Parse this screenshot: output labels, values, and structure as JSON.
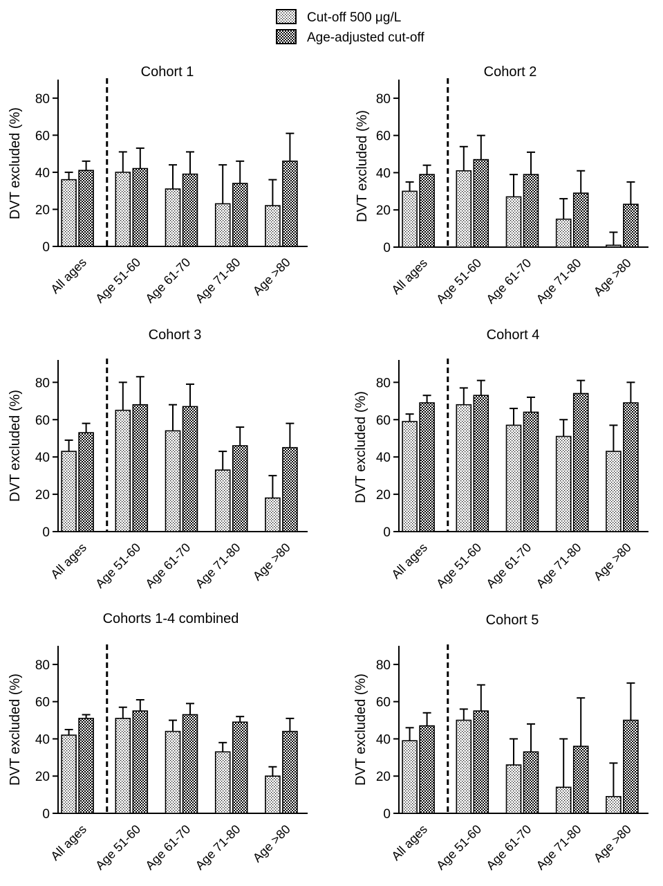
{
  "legend": {
    "items": [
      {
        "label": "Cut-off 500 μg/L",
        "pattern": "dots"
      },
      {
        "label": "Age-adjusted cut-off",
        "pattern": "checker"
      }
    ]
  },
  "colors": {
    "ink": "#000000",
    "background": "#ffffff"
  },
  "chart_data": [
    {
      "type": "bar",
      "title": "Cohort 1",
      "ylabel": "DVT excluded (%)",
      "ylim": [
        0,
        90
      ],
      "yticks": [
        0,
        20,
        40,
        60,
        80
      ],
      "categories": [
        "All ages",
        "Age 51-60",
        "Age 61-70",
        "Age 71-80",
        "Age >80"
      ],
      "series": [
        {
          "name": "Cut-off 500 μg/L",
          "values": [
            36,
            40,
            31,
            23,
            22
          ],
          "errors": [
            4,
            11,
            13,
            21,
            14
          ]
        },
        {
          "name": "Age-adjusted cut-off",
          "values": [
            41,
            42,
            39,
            34,
            46
          ],
          "errors": [
            5,
            11,
            12,
            12,
            15
          ]
        }
      ]
    },
    {
      "type": "bar",
      "title": "Cohort 2",
      "ylabel": "DVT excluded (%)",
      "ylim": [
        0,
        90
      ],
      "yticks": [
        0,
        20,
        40,
        60,
        80
      ],
      "categories": [
        "All ages",
        "Age 51-60",
        "Age 61-70",
        "Age 71-80",
        "Age >80"
      ],
      "series": [
        {
          "name": "Cut-off 500 μg/L",
          "values": [
            30,
            41,
            27,
            15,
            1
          ],
          "errors": [
            5,
            13,
            12,
            11,
            7
          ]
        },
        {
          "name": "Age-adjusted cut-off",
          "values": [
            39,
            47,
            39,
            29,
            23
          ],
          "errors": [
            5,
            13,
            12,
            12,
            12
          ]
        }
      ]
    },
    {
      "type": "bar",
      "title": "Cohort 3",
      "ylabel": "DVT excluded (%)",
      "ylim": [
        0,
        92
      ],
      "yticks": [
        0,
        20,
        40,
        60,
        80
      ],
      "categories": [
        "All ages",
        "Age 51-60",
        "Age 61-70",
        "Age 71-80",
        "Age >80"
      ],
      "series": [
        {
          "name": "Cut-off 500 μg/L",
          "values": [
            43,
            65,
            54,
            33,
            18
          ],
          "errors": [
            6,
            15,
            14,
            10,
            12
          ]
        },
        {
          "name": "Age-adjusted cut-off",
          "values": [
            53,
            68,
            67,
            46,
            45
          ],
          "errors": [
            5,
            15,
            12,
            10,
            13
          ]
        }
      ]
    },
    {
      "type": "bar",
      "title": "Cohort 4",
      "ylabel": "DVT excluded (%)",
      "ylim": [
        0,
        92
      ],
      "yticks": [
        0,
        20,
        40,
        60,
        80
      ],
      "categories": [
        "All ages",
        "Age 51-60",
        "Age 61-70",
        "Age 71-80",
        "Age >80"
      ],
      "series": [
        {
          "name": "Cut-off 500 μg/L",
          "values": [
            59,
            68,
            57,
            51,
            43
          ],
          "errors": [
            4,
            9,
            9,
            9,
            14
          ]
        },
        {
          "name": "Age-adjusted cut-off",
          "values": [
            69,
            73,
            64,
            74,
            69
          ],
          "errors": [
            4,
            8,
            8,
            7,
            11
          ]
        }
      ]
    },
    {
      "type": "bar",
      "title": "Cohorts 1-4 combined",
      "ylabel": "DVT excluded (%)",
      "ylim": [
        0,
        90
      ],
      "yticks": [
        0,
        20,
        40,
        60,
        80
      ],
      "categories": [
        "All ages",
        "Age 51-60",
        "Age 61-70",
        "Age 71-80",
        "Age >80"
      ],
      "series": [
        {
          "name": "Cut-off 500 μg/L",
          "values": [
            42,
            51,
            44,
            33,
            20
          ],
          "errors": [
            3,
            6,
            6,
            5,
            5
          ]
        },
        {
          "name": "Age-adjusted cut-off",
          "values": [
            51,
            55,
            53,
            49,
            44
          ],
          "errors": [
            2,
            6,
            6,
            3,
            7
          ]
        }
      ]
    },
    {
      "type": "bar",
      "title": "Cohort 5",
      "ylabel": "DVT excluded (%)",
      "ylim": [
        0,
        90
      ],
      "yticks": [
        0,
        20,
        40,
        60,
        80
      ],
      "categories": [
        "All ages",
        "Age 51-60",
        "Age 61-70",
        "Age 71-80",
        "Age >80"
      ],
      "series": [
        {
          "name": "Cut-off 500 μg/L",
          "values": [
            39,
            50,
            26,
            14,
            9
          ],
          "errors": [
            7,
            6,
            14,
            26,
            18
          ]
        },
        {
          "name": "Age-adjusted cut-off",
          "values": [
            47,
            55,
            33,
            36,
            50
          ],
          "errors": [
            7,
            14,
            15,
            26,
            20
          ]
        }
      ]
    }
  ]
}
